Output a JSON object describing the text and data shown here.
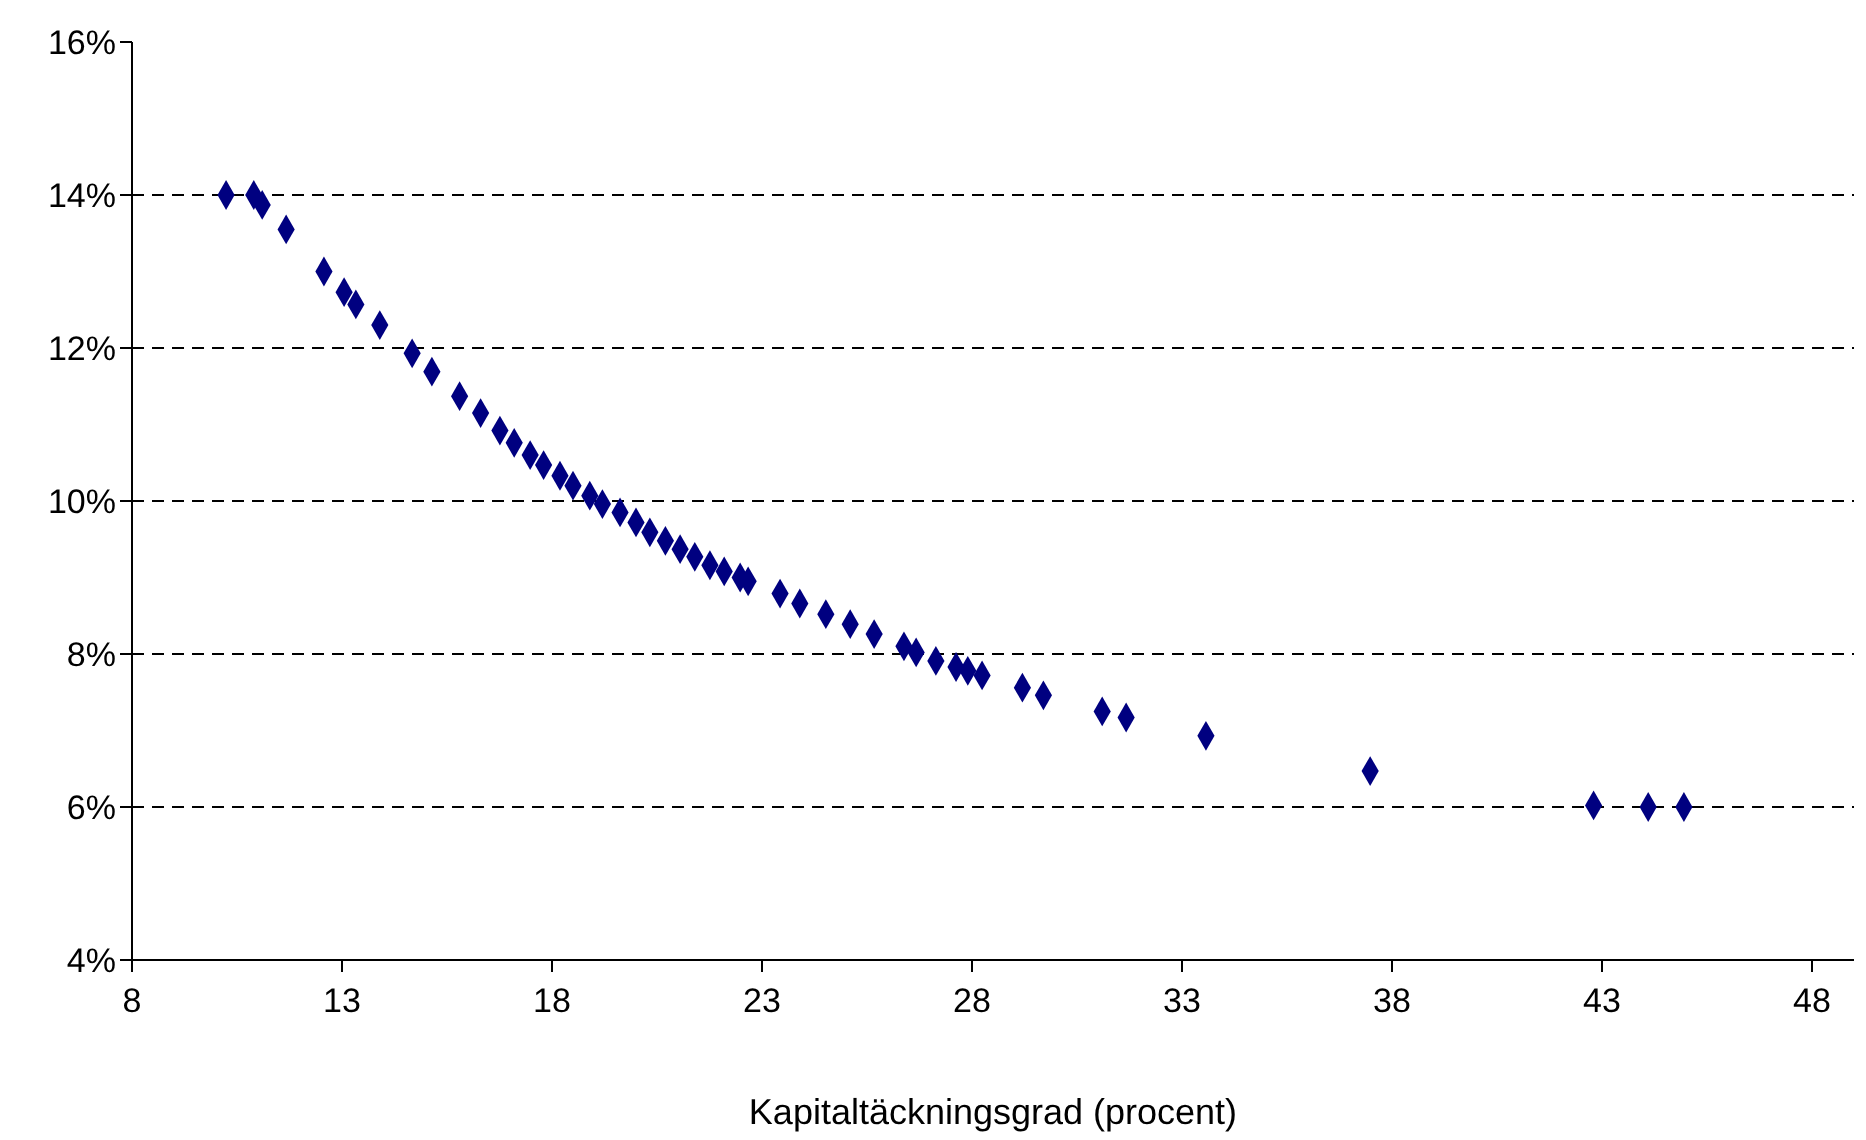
{
  "chart_data": {
    "type": "scatter",
    "xlabel": "Kapitaltäckningsgrad (procent)",
    "x": [
      10.24,
      10.9,
      11.1,
      11.67,
      12.57,
      13.05,
      13.33,
      13.9,
      14.67,
      15.14,
      15.8,
      16.3,
      16.76,
      17.1,
      17.48,
      17.8,
      18.19,
      18.5,
      18.9,
      19.2,
      19.62,
      20.0,
      20.33,
      20.7,
      21.05,
      21.4,
      21.76,
      22.1,
      22.48,
      22.67,
      23.43,
      23.9,
      24.52,
      25.1,
      25.67,
      26.38,
      26.67,
      27.14,
      27.62,
      27.9,
      28.24,
      29.2,
      29.7,
      31.1,
      31.67,
      33.57,
      37.48,
      42.8,
      44.1,
      44.95
    ],
    "series": [
      {
        "color": "#000080",
        "values": [
          14.0,
          14.0,
          13.87,
          13.55,
          13.0,
          12.73,
          12.57,
          12.3,
          11.93,
          11.69,
          11.37,
          11.15,
          10.92,
          10.76,
          10.6,
          10.47,
          10.33,
          10.2,
          10.07,
          9.96,
          9.85,
          9.72,
          9.59,
          9.48,
          9.37,
          9.27,
          9.16,
          9.08,
          9.0,
          8.95,
          8.79,
          8.66,
          8.52,
          8.39,
          8.26,
          8.1,
          8.02,
          7.91,
          7.83,
          7.78,
          7.72,
          7.56,
          7.46,
          7.25,
          7.17,
          6.93,
          6.47,
          6.02,
          6.0,
          6.0
        ]
      }
    ],
    "xlim": [
      8,
      49
    ],
    "xticks": [
      8,
      13,
      18,
      23,
      28,
      33,
      38,
      43,
      48
    ],
    "ylim": [
      4,
      16
    ],
    "yticks": [
      {
        "value": 4,
        "label": "4%"
      },
      {
        "value": 6,
        "label": "6%"
      },
      {
        "value": 8,
        "label": "8%"
      },
      {
        "value": 10,
        "label": "10%"
      },
      {
        "value": 12,
        "label": "12%"
      },
      {
        "value": 14,
        "label": "14%"
      },
      {
        "value": 16,
        "label": "16%"
      }
    ],
    "grid": "y",
    "legend": false,
    "marker": "diamond"
  }
}
